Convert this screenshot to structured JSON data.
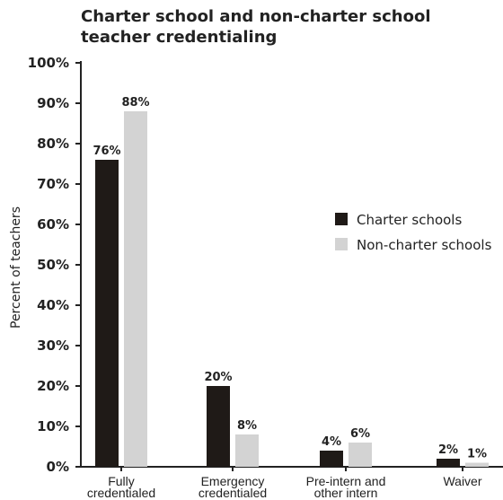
{
  "colors": {
    "charter": "#1f1a17",
    "non_charter": "#d3d3d3",
    "axis": "#222222"
  },
  "chart_data": {
    "type": "bar",
    "title_lines": [
      "Charter school and non-charter school",
      "teacher credentialing"
    ],
    "ylabel": "Percent of teachers",
    "ylim": [
      0,
      100
    ],
    "yticks": [
      "0%",
      "10%",
      "20%",
      "30%",
      "40%",
      "50%",
      "60%",
      "70%",
      "80%",
      "90%",
      "100%"
    ],
    "categories": [
      [
        "Fully",
        "credentialed"
      ],
      [
        "Emergency",
        "credentialed"
      ],
      [
        "Pre-intern and",
        "other intern"
      ],
      [
        "Waiver"
      ]
    ],
    "series": [
      {
        "name": "Charter schools",
        "values": [
          76,
          20,
          4,
          2
        ],
        "labels": [
          "76%",
          "20%",
          "4%",
          "2%"
        ]
      },
      {
        "name": "Non-charter schools",
        "values": [
          88,
          8,
          6,
          1
        ],
        "labels": [
          "88%",
          "8%",
          "6%",
          "1%"
        ]
      }
    ],
    "legend": "right"
  }
}
